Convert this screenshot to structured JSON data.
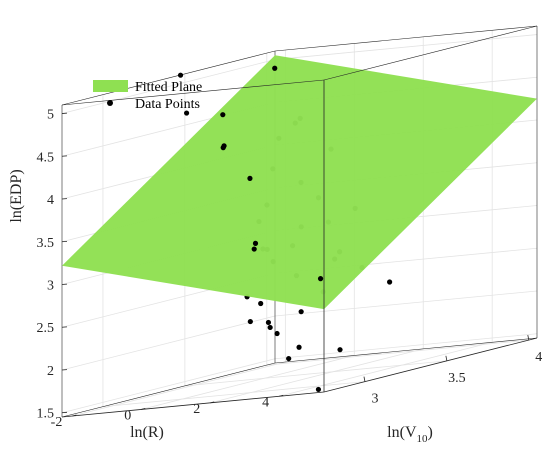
{
  "chart_data": {
    "type": "scatter",
    "subtype": "3d-surface-with-points",
    "title": "",
    "xlabel": "ln(V10)",
    "xlabel_main": "ln(V",
    "xlabel_sub": "10",
    "xlabel_close": ")",
    "ylabel": "ln(R)",
    "zlabel": "ln(EDP)",
    "xlim": [
      2.75,
      4.05
    ],
    "ylim": [
      -2.3,
      5.3
    ],
    "zlim": [
      1.45,
      5.1
    ],
    "x_ticks": [
      {
        "value": 3,
        "label": "3"
      },
      {
        "value": 3.5,
        "label": "3.5"
      },
      {
        "value": 4,
        "label": "4"
      }
    ],
    "y_ticks": [
      {
        "value": -2,
        "label": "-2"
      },
      {
        "value": 0,
        "label": "0"
      },
      {
        "value": 2,
        "label": "2"
      },
      {
        "value": 4,
        "label": "4"
      }
    ],
    "z_ticks": [
      {
        "value": 1.5,
        "label": "1.5"
      },
      {
        "value": 2,
        "label": "2"
      },
      {
        "value": 2.5,
        "label": "2.5"
      },
      {
        "value": 3,
        "label": "3"
      },
      {
        "value": 3.5,
        "label": "3.5"
      },
      {
        "value": 4,
        "label": "4"
      },
      {
        "value": 4.5,
        "label": "4.5"
      },
      {
        "value": 5,
        "label": "5"
      }
    ],
    "grid": true,
    "legend": {
      "position": "top-left",
      "entries": [
        {
          "label": "Fitted Plane",
          "marker": "patch",
          "color": "#8fe052"
        },
        {
          "label": "Data Points",
          "marker": "dot",
          "color": "#000000"
        }
      ]
    },
    "fitted_plane": {
      "color": "#8fe052",
      "corners": [
        {
          "x": 2.75,
          "y": 5.3,
          "z": 2.42
        },
        {
          "x": 4.05,
          "y": 5.3,
          "z": 4.25
        },
        {
          "x": 4.05,
          "y": -2.3,
          "z": 5.05
        },
        {
          "x": 2.75,
          "y": -2.3,
          "z": 3.22
        }
      ]
    },
    "points": [
      {
        "x": 2.75,
        "y": 5.2,
        "z": 2.78
      },
      {
        "x": 2.8,
        "y": 4.4,
        "z": 2.4
      },
      {
        "x": 2.8,
        "y": 3.5,
        "z": 2.25
      },
      {
        "x": 2.85,
        "y": 2.8,
        "z": 3.17
      },
      {
        "x": 2.9,
        "y": 2.6,
        "z": 3.22
      },
      {
        "x": 2.85,
        "y": 3.8,
        "z": 1.85
      },
      {
        "x": 3.08,
        "y": 1.5,
        "z": 2.55
      },
      {
        "x": 3.0,
        "y": 2.5,
        "z": 2.25
      },
      {
        "x": 3.1,
        "y": 1.5,
        "z": 2.25
      },
      {
        "x": 3.1,
        "y": 1.8,
        "z": 2.45
      },
      {
        "x": 3.2,
        "y": -1.0,
        "z": 5.18
      },
      {
        "x": 3.15,
        "y": 0.5,
        "z": 4.32
      },
      {
        "x": 3.25,
        "y": 0.0,
        "z": 4.27
      },
      {
        "x": 3.3,
        "y": -1.3,
        "z": 4.7
      },
      {
        "x": 3.3,
        "y": 0.8,
        "z": 3.35
      },
      {
        "x": 3.35,
        "y": 0.3,
        "z": 3.85
      },
      {
        "x": 3.35,
        "y": 0.8,
        "z": 3.0
      },
      {
        "x": 3.4,
        "y": 1.3,
        "z": 3.0
      },
      {
        "x": 3.45,
        "y": 0.5,
        "z": 2.82
      },
      {
        "x": 3.45,
        "y": 0.2,
        "z": 2.98
      },
      {
        "x": 3.5,
        "y": -1.2,
        "z": 4.58
      },
      {
        "x": 3.55,
        "y": 0.7,
        "z": 2.6
      },
      {
        "x": 3.58,
        "y": -0.3,
        "z": 3.45
      },
      {
        "x": 3.6,
        "y": 0.6,
        "z": 3.15
      },
      {
        "x": 3.2,
        "y": 3.0,
        "z": 1.35
      },
      {
        "x": 3.25,
        "y": 2.2,
        "z": 1.85
      },
      {
        "x": 3.2,
        "y": 1.8,
        "z": 2.05
      },
      {
        "x": 3.5,
        "y": 2.2,
        "z": 1.7
      },
      {
        "x": 3.7,
        "y": -0.7,
        "z": 3.83
      },
      {
        "x": 3.72,
        "y": 1.0,
        "z": 2.7
      },
      {
        "x": 3.75,
        "y": 1.0,
        "z": 2.77
      },
      {
        "x": 3.8,
        "y": -1.0,
        "z": 4.15
      },
      {
        "x": 3.83,
        "y": -0.5,
        "z": 3.6
      },
      {
        "x": 3.88,
        "y": -1.5,
        "z": 4.95
      },
      {
        "x": 3.9,
        "y": -1.0,
        "z": 4.28
      },
      {
        "x": 3.93,
        "y": -1.0,
        "z": 4.32
      },
      {
        "x": 3.95,
        "y": 0.5,
        "z": 3.2
      },
      {
        "x": 3.95,
        "y": 0.7,
        "z": 2.5
      },
      {
        "x": 3.95,
        "y": 1.5,
        "z": 2.3
      },
      {
        "x": 4.0,
        "y": -0.8,
        "z": 3.35
      },
      {
        "x": 3.95,
        "y": -0.2,
        "z": 3.92
      },
      {
        "x": 3.85,
        "y": 0.2,
        "z": 3.1
      },
      {
        "x": 3.65,
        "y": 1.0,
        "z": 2.35
      }
    ]
  }
}
